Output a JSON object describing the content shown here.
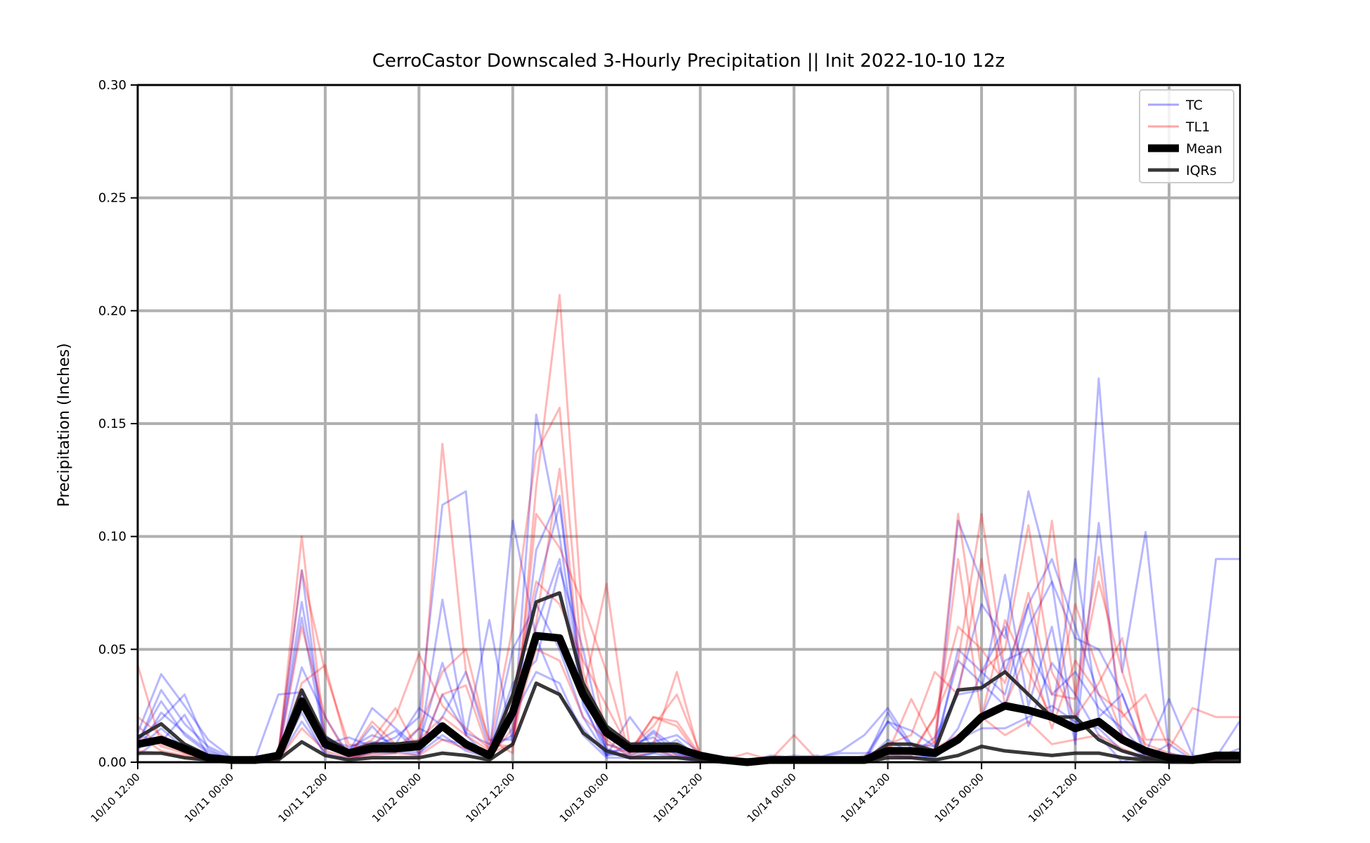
{
  "chart_data": {
    "type": "line",
    "title": "CerroCastor Downscaled 3-Hourly Precipitation || Init 2022-10-10 12z",
    "xlabel": "",
    "ylabel": "Precipitation (Inches)",
    "ylim": [
      0,
      0.3
    ],
    "y_ticks": [
      "0.00",
      "0.05",
      "0.10",
      "0.15",
      "0.20",
      "0.25",
      "0.30"
    ],
    "x_ticks": [
      "10/10 12:00",
      "10/11 00:00",
      "10/11 12:00",
      "10/12 00:00",
      "10/12 12:00",
      "10/13 00:00",
      "10/13 12:00",
      "10/14 00:00",
      "10/14 12:00",
      "10/15 00:00",
      "10/15 12:00",
      "10/16 00:00"
    ],
    "x_start": "2022-10-10 12:00",
    "x_step_hours": 3,
    "grid": true,
    "legend_position": "top-right",
    "legend": [
      {
        "label": "TC",
        "color": "#0000ff",
        "style": "thin-translucent"
      },
      {
        "label": "TL1",
        "color": "#ff0000",
        "style": "thin-translucent"
      },
      {
        "label": "Mean",
        "color": "#000000",
        "style": "thick"
      },
      {
        "label": "IQRs",
        "color": "#222222",
        "style": "medium"
      }
    ],
    "series": [
      {
        "group": "TC",
        "values": [
          0.013,
          0.039,
          0.025,
          0.01,
          0.002,
          0.001,
          0.004,
          0.071,
          0.012,
          0.004,
          0.024,
          0.015,
          0.006,
          0.072,
          0.012,
          0.002,
          0.107,
          0.055,
          0.03,
          0.015,
          0.003,
          0.008,
          0.011,
          0.003,
          0.002,
          0.001,
          0.0,
          0.003,
          0.002,
          0.003,
          0.0,
          0.0,
          0.022,
          0.006,
          0.003,
          0.05,
          0.04,
          0.06,
          0.016,
          0.044,
          0.03,
          0.012,
          0.0,
          0.004,
          0.002,
          0.001,
          0.002,
          0.002
        ]
      },
      {
        "group": "TC",
        "values": [
          0.008,
          0.032,
          0.017,
          0.007,
          0.002,
          0.001,
          0.003,
          0.064,
          0.008,
          0.011,
          0.007,
          0.011,
          0.02,
          0.114,
          0.12,
          0.01,
          0.01,
          0.154,
          0.1,
          0.03,
          0.008,
          0.005,
          0.014,
          0.006,
          0.002,
          0.001,
          0.0,
          0.001,
          0.003,
          0.002,
          0.005,
          0.012,
          0.024,
          0.008,
          0.007,
          0.033,
          0.07,
          0.055,
          0.12,
          0.08,
          0.01,
          0.17,
          0.04,
          0.102,
          0.004,
          0.002,
          0.09,
          0.09
        ]
      },
      {
        "group": "TC",
        "values": [
          0.005,
          0.022,
          0.013,
          0.005,
          0.001,
          0.001,
          0.004,
          0.085,
          0.006,
          0.006,
          0.012,
          0.008,
          0.008,
          0.044,
          0.012,
          0.063,
          0.008,
          0.094,
          0.118,
          0.027,
          0.003,
          0.004,
          0.009,
          0.012,
          0.004,
          0.001,
          0.0,
          0.002,
          0.001,
          0.001,
          0.0,
          0.002,
          0.018,
          0.008,
          0.004,
          0.107,
          0.08,
          0.04,
          0.07,
          0.02,
          0.09,
          0.02,
          0.03,
          0.004,
          0.028,
          0.003,
          0.002,
          0.018
        ]
      },
      {
        "group": "TC",
        "values": [
          0.01,
          0.019,
          0.03,
          0.006,
          0.001,
          0.001,
          0.002,
          0.03,
          0.006,
          0.005,
          0.008,
          0.014,
          0.004,
          0.03,
          0.013,
          0.008,
          0.024,
          0.075,
          0.114,
          0.033,
          0.005,
          0.005,
          0.013,
          0.004,
          0.001,
          0.001,
          0.0,
          0.001,
          0.001,
          0.002,
          0.004,
          0.004,
          0.005,
          0.003,
          0.011,
          0.03,
          0.032,
          0.083,
          0.025,
          0.06,
          0.008,
          0.106,
          0.01,
          0.002,
          0.008,
          0.001,
          0.001,
          0.003
        ]
      },
      {
        "group": "TC",
        "values": [
          0.009,
          0.027,
          0.012,
          0.004,
          0.001,
          0.001,
          0.002,
          0.042,
          0.02,
          0.003,
          0.016,
          0.005,
          0.003,
          0.02,
          0.04,
          0.006,
          0.012,
          0.06,
          0.09,
          0.025,
          0.006,
          0.002,
          0.004,
          0.01,
          0.001,
          0.0,
          0.0,
          0.001,
          0.0,
          0.002,
          0.0,
          0.0,
          0.018,
          0.014,
          0.007,
          0.045,
          0.035,
          0.025,
          0.06,
          0.08,
          0.055,
          0.05,
          0.03,
          0.002,
          0.003,
          0.001,
          0.002,
          0.006
        ]
      },
      {
        "group": "TC",
        "values": [
          0.006,
          0.015,
          0.006,
          0.002,
          0.0,
          0.0,
          0.002,
          0.022,
          0.003,
          0.002,
          0.004,
          0.004,
          0.015,
          0.01,
          0.008,
          0.004,
          0.035,
          0.045,
          0.086,
          0.05,
          0.004,
          0.003,
          0.006,
          0.004,
          0.001,
          0.0,
          0.0,
          0.001,
          0.0,
          0.001,
          0.0,
          0.0,
          0.003,
          0.002,
          0.003,
          0.009,
          0.02,
          0.045,
          0.05,
          0.03,
          0.04,
          0.024,
          0.015,
          0.004,
          0.002,
          0.001,
          0.001,
          0.002
        ]
      },
      {
        "group": "TC",
        "values": [
          0.012,
          0.009,
          0.021,
          0.003,
          0.001,
          0.001,
          0.03,
          0.031,
          0.01,
          0.007,
          0.009,
          0.008,
          0.024,
          0.016,
          0.006,
          0.003,
          0.05,
          0.07,
          0.05,
          0.02,
          0.003,
          0.02,
          0.006,
          0.002,
          0.001,
          0.0,
          0.0,
          0.001,
          0.0,
          0.002,
          0.0,
          0.0,
          0.01,
          0.004,
          0.002,
          0.015,
          0.04,
          0.03,
          0.07,
          0.09,
          0.06,
          0.03,
          0.012,
          0.003,
          0.002,
          0.001,
          0.001,
          0.002
        ]
      },
      {
        "group": "TC",
        "values": [
          0.003,
          0.011,
          0.008,
          0.002,
          0.0,
          0.0,
          0.001,
          0.018,
          0.004,
          0.001,
          0.005,
          0.006,
          0.004,
          0.012,
          0.005,
          0.002,
          0.02,
          0.04,
          0.035,
          0.012,
          0.002,
          0.002,
          0.004,
          0.002,
          0.0,
          0.0,
          0.0,
          0.0,
          0.0,
          0.001,
          0.0,
          0.0,
          0.004,
          0.002,
          0.002,
          0.01,
          0.015,
          0.015,
          0.02,
          0.025,
          0.018,
          0.015,
          0.005,
          0.002,
          0.001,
          0.0,
          0.001,
          0.001
        ]
      },
      {
        "group": "TL1",
        "values": [
          0.043,
          0.008,
          0.005,
          0.002,
          0.001,
          0.001,
          0.003,
          0.1,
          0.01,
          0.004,
          0.007,
          0.006,
          0.006,
          0.141,
          0.04,
          0.01,
          0.004,
          0.122,
          0.207,
          0.06,
          0.012,
          0.006,
          0.005,
          0.003,
          0.001,
          0.001,
          0.001,
          0.0,
          0.0,
          0.001,
          0.0,
          0.001,
          0.007,
          0.004,
          0.009,
          0.11,
          0.04,
          0.05,
          0.105,
          0.04,
          0.02,
          0.035,
          0.055,
          0.005,
          0.002,
          0.001,
          0.002,
          0.004
        ]
      },
      {
        "group": "TL1",
        "values": [
          0.02,
          0.012,
          0.006,
          0.002,
          0.001,
          0.001,
          0.004,
          0.085,
          0.04,
          0.008,
          0.006,
          0.02,
          0.048,
          0.025,
          0.015,
          0.006,
          0.06,
          0.137,
          0.157,
          0.04,
          0.008,
          0.004,
          0.02,
          0.016,
          0.002,
          0.001,
          0.001,
          0.001,
          0.001,
          0.002,
          0.001,
          0.001,
          0.004,
          0.003,
          0.02,
          0.045,
          0.11,
          0.04,
          0.03,
          0.107,
          0.03,
          0.091,
          0.02,
          0.03,
          0.006,
          0.024,
          0.02,
          0.02
        ]
      },
      {
        "group": "TL1",
        "values": [
          0.016,
          0.007,
          0.004,
          0.002,
          0.001,
          0.001,
          0.002,
          0.035,
          0.043,
          0.004,
          0.01,
          0.024,
          0.004,
          0.03,
          0.034,
          0.004,
          0.008,
          0.062,
          0.13,
          0.03,
          0.079,
          0.006,
          0.016,
          0.03,
          0.004,
          0.001,
          0.004,
          0.001,
          0.012,
          0.001,
          0.0,
          0.003,
          0.004,
          0.028,
          0.008,
          0.09,
          0.02,
          0.063,
          0.04,
          0.02,
          0.07,
          0.04,
          0.012,
          0.003,
          0.002,
          0.001,
          0.001,
          0.003
        ]
      },
      {
        "group": "TL1",
        "values": [
          0.012,
          0.005,
          0.003,
          0.001,
          0.0,
          0.0,
          0.003,
          0.06,
          0.02,
          0.002,
          0.004,
          0.006,
          0.015,
          0.04,
          0.05,
          0.008,
          0.007,
          0.11,
          0.095,
          0.07,
          0.04,
          0.003,
          0.008,
          0.04,
          0.002,
          0.001,
          0.0,
          0.0,
          0.0,
          0.002,
          0.0,
          0.001,
          0.006,
          0.004,
          0.02,
          0.06,
          0.05,
          0.035,
          0.075,
          0.03,
          0.028,
          0.08,
          0.04,
          0.01,
          0.01,
          0.002,
          0.001,
          0.002
        ]
      },
      {
        "group": "TL1",
        "values": [
          0.008,
          0.01,
          0.004,
          0.001,
          0.0,
          0.0,
          0.002,
          0.026,
          0.01,
          0.003,
          0.018,
          0.008,
          0.01,
          0.02,
          0.012,
          0.005,
          0.03,
          0.08,
          0.07,
          0.045,
          0.025,
          0.005,
          0.02,
          0.018,
          0.003,
          0.001,
          0.0,
          0.0,
          0.0,
          0.001,
          0.0,
          0.002,
          0.008,
          0.012,
          0.04,
          0.03,
          0.09,
          0.025,
          0.05,
          0.015,
          0.045,
          0.03,
          0.022,
          0.008,
          0.004,
          0.001,
          0.001,
          0.002
        ]
      },
      {
        "group": "TL1",
        "values": [
          0.005,
          0.004,
          0.002,
          0.001,
          0.0,
          0.0,
          0.001,
          0.015,
          0.005,
          0.002,
          0.003,
          0.004,
          0.003,
          0.01,
          0.006,
          0.002,
          0.015,
          0.05,
          0.045,
          0.02,
          0.01,
          0.002,
          0.005,
          0.006,
          0.001,
          0.0,
          0.0,
          0.0,
          0.0,
          0.001,
          0.0,
          0.0,
          0.003,
          0.002,
          0.006,
          0.012,
          0.02,
          0.012,
          0.018,
          0.008,
          0.01,
          0.012,
          0.006,
          0.002,
          0.001,
          0.0,
          0.001,
          0.001
        ]
      }
    ],
    "mean": {
      "label": "Mean",
      "values": [
        0.008,
        0.01,
        0.006,
        0.002,
        0.001,
        0.001,
        0.003,
        0.027,
        0.008,
        0.004,
        0.006,
        0.006,
        0.007,
        0.016,
        0.008,
        0.003,
        0.022,
        0.056,
        0.055,
        0.03,
        0.013,
        0.006,
        0.006,
        0.006,
        0.003,
        0.001,
        0.0,
        0.001,
        0.001,
        0.001,
        0.001,
        0.001,
        0.005,
        0.005,
        0.004,
        0.01,
        0.02,
        0.025,
        0.023,
        0.02,
        0.015,
        0.018,
        0.01,
        0.005,
        0.002,
        0.001,
        0.003,
        0.003
      ]
    },
    "iqr_low": {
      "label": "IQRs",
      "values": [
        0.004,
        0.004,
        0.002,
        0.001,
        0.0,
        0.0,
        0.001,
        0.009,
        0.003,
        0.001,
        0.002,
        0.002,
        0.002,
        0.004,
        0.003,
        0.001,
        0.008,
        0.035,
        0.03,
        0.013,
        0.005,
        0.002,
        0.002,
        0.002,
        0.001,
        0.0,
        0.0,
        0.0,
        0.0,
        0.0,
        0.0,
        0.0,
        0.002,
        0.002,
        0.001,
        0.003,
        0.007,
        0.005,
        0.004,
        0.003,
        0.004,
        0.004,
        0.002,
        0.001,
        0.0,
        0.0,
        0.001,
        0.001
      ]
    },
    "iqr_high": {
      "label": "IQRs",
      "values": [
        0.011,
        0.017,
        0.008,
        0.003,
        0.001,
        0.001,
        0.004,
        0.032,
        0.011,
        0.005,
        0.008,
        0.008,
        0.009,
        0.016,
        0.008,
        0.004,
        0.03,
        0.071,
        0.075,
        0.035,
        0.016,
        0.008,
        0.008,
        0.008,
        0.003,
        0.001,
        0.001,
        0.001,
        0.001,
        0.002,
        0.001,
        0.001,
        0.008,
        0.008,
        0.005,
        0.032,
        0.033,
        0.04,
        0.03,
        0.02,
        0.02,
        0.01,
        0.005,
        0.002,
        0.001,
        0.001,
        0.003,
        0.003
      ]
    }
  }
}
